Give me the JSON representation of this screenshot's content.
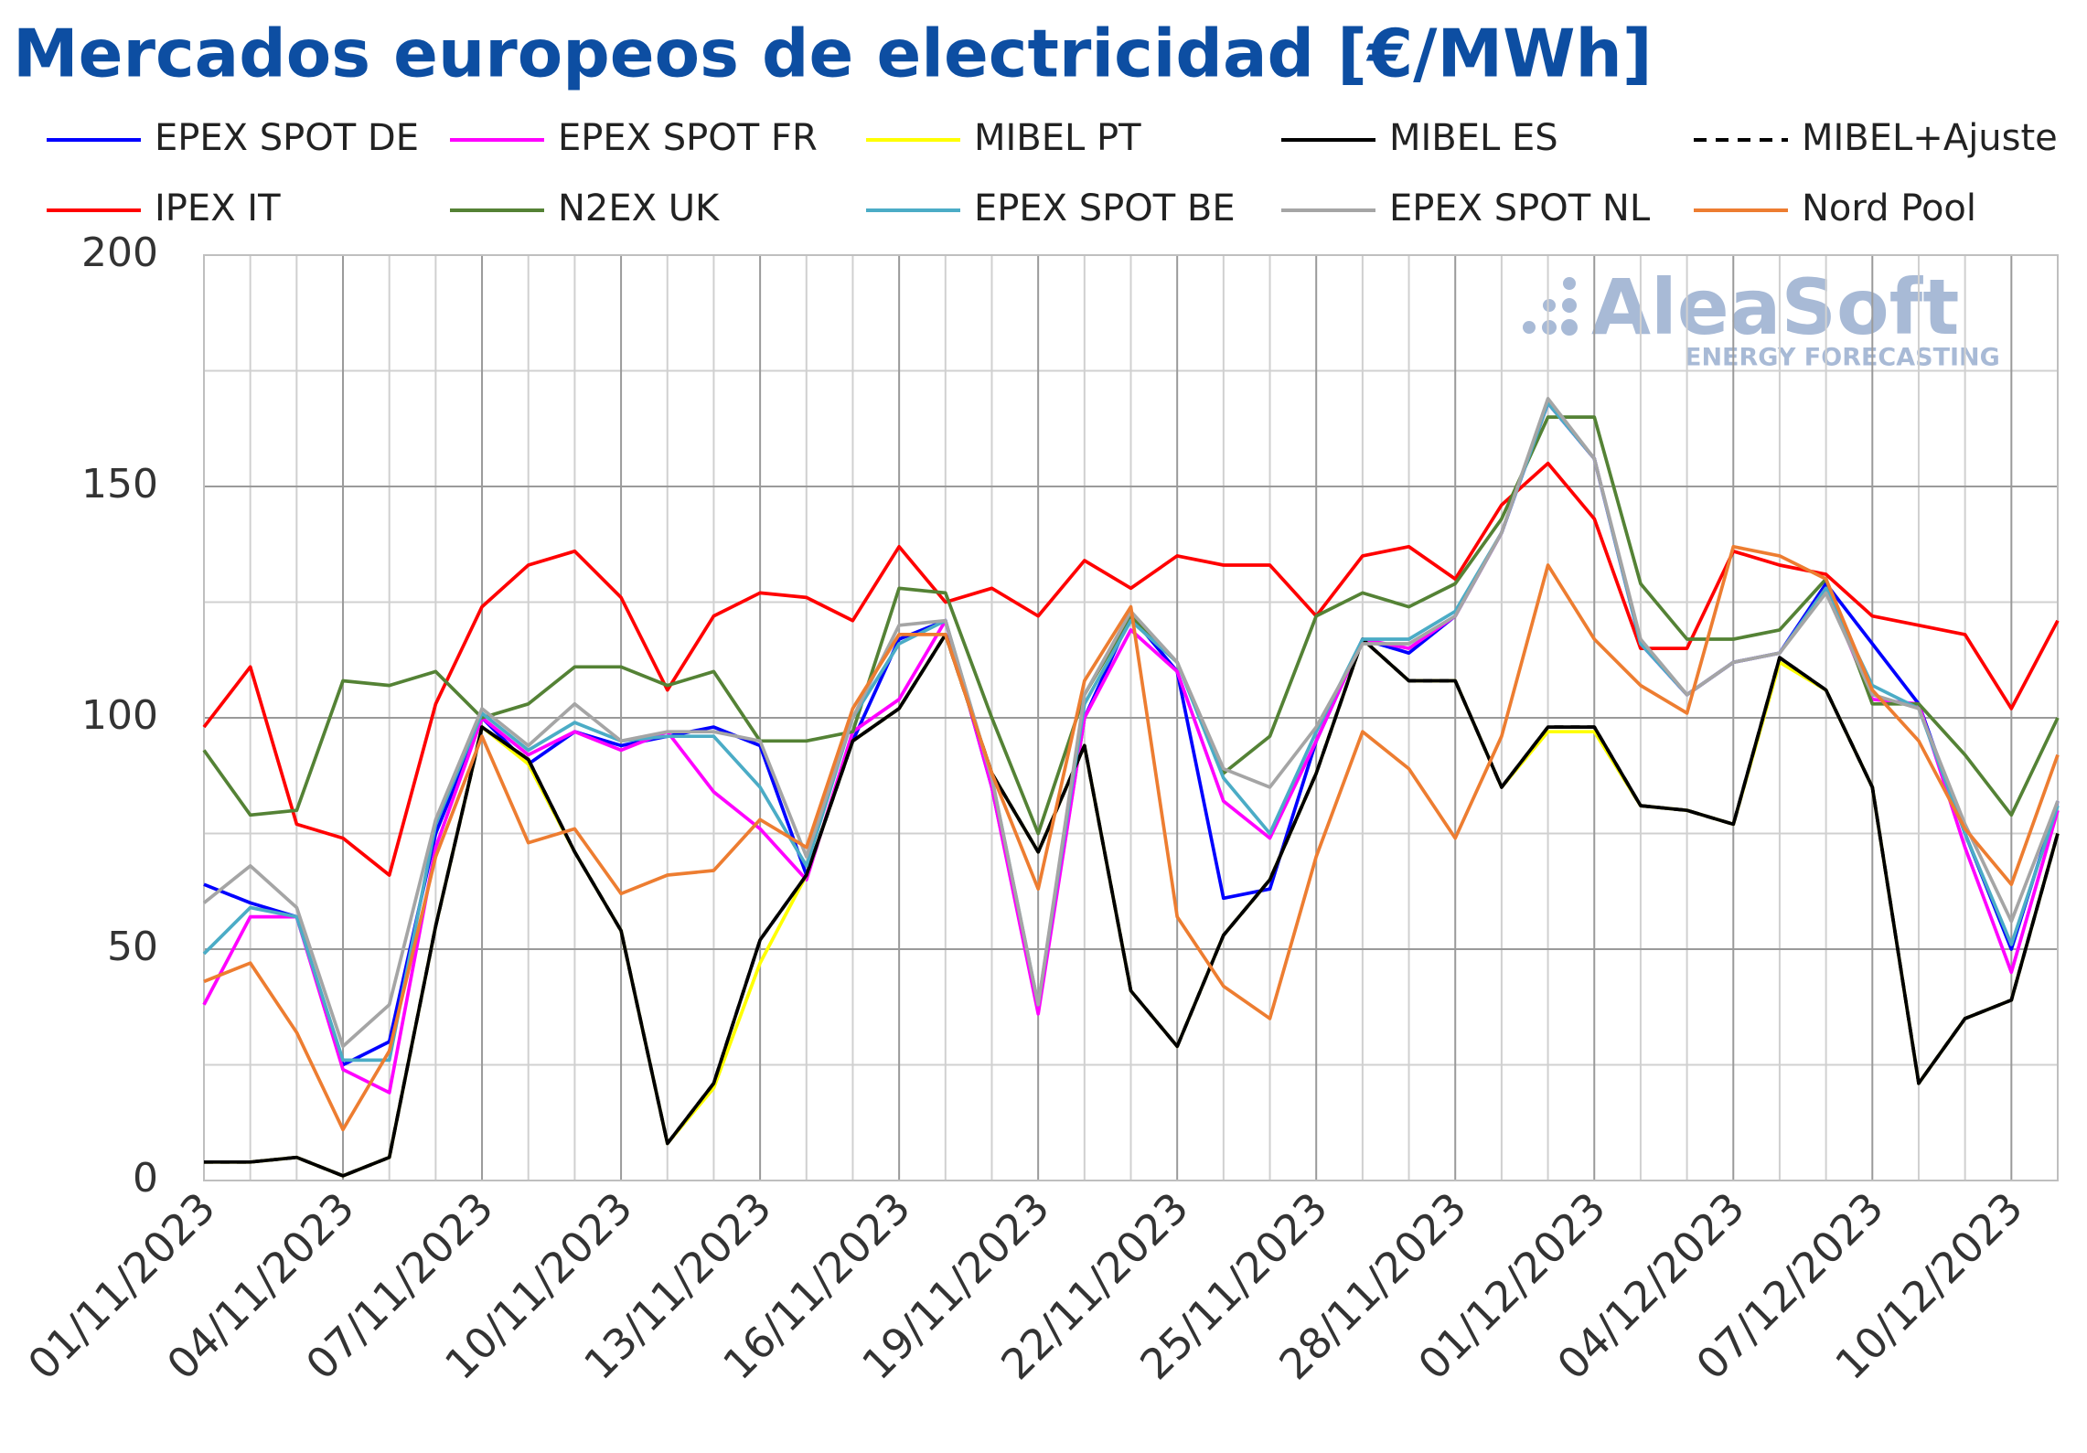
{
  "chart_data": {
    "type": "line",
    "title": "Mercados europeos de electricidad [€/MWh]",
    "watermark": {
      "brand": "AleaSoft",
      "tagline": "ENERGY FORECASTING"
    },
    "categories": [
      "01/11/2023",
      null,
      null,
      "04/11/2023",
      null,
      null,
      "07/11/2023",
      null,
      null,
      "10/11/2023",
      null,
      null,
      "13/11/2023",
      null,
      null,
      "16/11/2023",
      null,
      null,
      "19/11/2023",
      null,
      null,
      "22/11/2023",
      null,
      null,
      "25/11/2023",
      null,
      null,
      "28/11/2023",
      null,
      null,
      "01/12/2023",
      null,
      null,
      "04/12/2023",
      null,
      null,
      "07/12/2023",
      null,
      null,
      "10/12/2023",
      null
    ],
    "ylim": [
      0,
      200
    ],
    "yticks": [
      0,
      50,
      100,
      150,
      200
    ],
    "minor_yticks": [
      25,
      75,
      125,
      175
    ],
    "grid": true,
    "series": [
      {
        "name": "EPEX SPOT DE",
        "color": "#0000ff",
        "values": [
          64,
          60,
          57,
          25,
          30,
          75,
          100,
          90,
          97,
          94,
          96,
          98,
          94,
          66,
          95,
          117,
          121,
          85,
          37,
          100,
          122,
          110,
          61,
          63,
          95,
          117,
          114,
          122,
          140,
          168,
          156,
          116,
          105,
          112,
          114,
          129,
          116,
          103,
          75,
          50,
          82
        ]
      },
      {
        "name": "EPEX SPOT FR",
        "color": "#ff00ff",
        "values": [
          38,
          57,
          57,
          24,
          19,
          72,
          100,
          92,
          97,
          93,
          97,
          84,
          76,
          65,
          97,
          104,
          121,
          85,
          36,
          100,
          119,
          110,
          82,
          74,
          95,
          117,
          115,
          122,
          140,
          168,
          156,
          116,
          105,
          112,
          114,
          128,
          104,
          103,
          72,
          45,
          80
        ]
      },
      {
        "name": "MIBEL PT",
        "color": "#ffff00",
        "values": [
          4,
          4,
          5,
          1,
          5,
          55,
          98,
          90,
          71,
          54,
          8,
          20,
          47,
          66,
          95,
          102,
          118,
          88,
          71,
          94,
          41,
          29,
          53,
          65,
          88,
          117,
          108,
          108,
          85,
          97,
          97,
          81,
          80,
          77,
          112,
          106,
          85,
          21,
          35,
          39,
          75
        ]
      },
      {
        "name": "MIBEL ES",
        "color": "#000000",
        "values": [
          4,
          4,
          5,
          1,
          5,
          55,
          98,
          91,
          71,
          54,
          8,
          21,
          52,
          66,
          95,
          102,
          118,
          88,
          71,
          94,
          41,
          29,
          53,
          65,
          88,
          117,
          108,
          108,
          85,
          98,
          98,
          81,
          80,
          77,
          113,
          106,
          85,
          21,
          35,
          39,
          75
        ]
      },
      {
        "name": "MIBEL+Ajuste",
        "color": "#000000",
        "dashed": true,
        "values": [
          4,
          4,
          5,
          1,
          5,
          55,
          98,
          91,
          71,
          54,
          8,
          21,
          52,
          66,
          95,
          102,
          118,
          88,
          71,
          94,
          41,
          29,
          53,
          65,
          88,
          117,
          108,
          108,
          85,
          98,
          98,
          81,
          80,
          77,
          113,
          106,
          85,
          21,
          35,
          39,
          75
        ]
      },
      {
        "name": "IPEX IT",
        "color": "#ff0000",
        "values": [
          98,
          111,
          77,
          74,
          66,
          103,
          124,
          133,
          136,
          126,
          106,
          122,
          127,
          126,
          121,
          137,
          125,
          128,
          122,
          134,
          128,
          135,
          133,
          133,
          122,
          135,
          137,
          130,
          146,
          155,
          143,
          115,
          115,
          136,
          133,
          131,
          122,
          120,
          118,
          102,
          121
        ]
      },
      {
        "name": "N2EX UK",
        "color": "#548235",
        "values": [
          93,
          79,
          80,
          108,
          107,
          110,
          100,
          103,
          111,
          111,
          107,
          110,
          95,
          95,
          97,
          128,
          127,
          100,
          75,
          105,
          122,
          112,
          88,
          96,
          122,
          127,
          124,
          129,
          143,
          165,
          165,
          129,
          117,
          117,
          119,
          130,
          103,
          103,
          92,
          79,
          100
        ]
      },
      {
        "name": "EPEX SPOT BE",
        "color": "#4bacc6",
        "values": [
          49,
          59,
          57,
          26,
          26,
          77,
          101,
          93,
          99,
          95,
          96,
          96,
          85,
          68,
          100,
          116,
          121,
          87,
          38,
          103,
          121,
          112,
          87,
          75,
          97,
          117,
          117,
          123,
          140,
          168,
          156,
          116,
          105,
          112,
          114,
          128,
          107,
          102,
          75,
          51,
          81
        ]
      },
      {
        "name": "EPEX SPOT NL",
        "color": "#a5a5a5",
        "values": [
          60,
          68,
          59,
          29,
          38,
          78,
          102,
          94,
          103,
          95,
          97,
          97,
          95,
          70,
          100,
          120,
          121,
          87,
          38,
          105,
          123,
          112,
          89,
          85,
          98,
          116,
          116,
          122,
          140,
          169,
          156,
          117,
          105,
          112,
          114,
          127,
          105,
          102,
          77,
          56,
          82
        ]
      },
      {
        "name": "Nord Pool",
        "color": "#ed7d31",
        "values": [
          43,
          47,
          32,
          11,
          28,
          70,
          96,
          73,
          76,
          62,
          66,
          67,
          78,
          72,
          102,
          118,
          118,
          88,
          63,
          108,
          124,
          57,
          42,
          35,
          70,
          97,
          89,
          74,
          96,
          133,
          117,
          107,
          101,
          137,
          135,
          130,
          106,
          95,
          76,
          64,
          92
        ]
      }
    ]
  }
}
